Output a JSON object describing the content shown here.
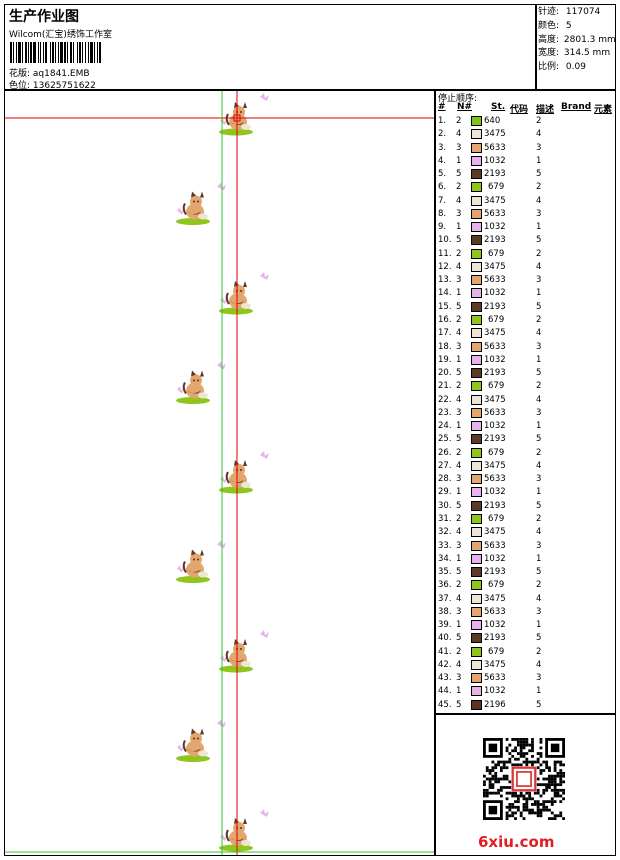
{
  "header": {
    "title": "生产作业图",
    "company": "Wilcom(汇宝)绣饰工作室",
    "pattern": "花版: aq1841.EMB",
    "color_code": "色位: 13625751622"
  },
  "info": {
    "stitches_label": "针迹:",
    "stitches": "117074",
    "colors_label": "颜色:",
    "colors": "5",
    "height_label": "高度:",
    "height": "2801.3 mm",
    "width_label": "宽度:",
    "width": "314.5 mm",
    "scale_label": "比例:",
    "scale": "0.09"
  },
  "sequence": {
    "heading": "停止顺序:",
    "columns": [
      "#",
      "N#",
      "St.",
      "代码",
      "描述",
      "Brand",
      "元素"
    ],
    "swatch_colors": {
      "640": "#7ec21a",
      "679": "#8fc51c",
      "3475": "#ede6d6",
      "5633": "#e2a66e",
      "1032": "#e6b3ea",
      "2193": "#5e3a26",
      "2196": "#5a3421"
    },
    "rows": [
      {
        "num": "1.",
        "n": "2",
        "code": "640",
        "el": "2"
      },
      {
        "num": "2.",
        "n": "4",
        "code": "3475",
        "el": "4"
      },
      {
        "num": "3.",
        "n": "3",
        "code": "5633",
        "el": "3"
      },
      {
        "num": "4.",
        "n": "1",
        "code": "1032",
        "el": "1"
      },
      {
        "num": "5.",
        "n": "5",
        "code": "2193",
        "el": "5"
      },
      {
        "num": "6.",
        "n": "2",
        "code": "679",
        "el": "2"
      },
      {
        "num": "7.",
        "n": "4",
        "code": "3475",
        "el": "4"
      },
      {
        "num": "8.",
        "n": "3",
        "code": "5633",
        "el": "3"
      },
      {
        "num": "9.",
        "n": "1",
        "code": "1032",
        "el": "1"
      },
      {
        "num": "10.",
        "n": "5",
        "code": "2193",
        "el": "5"
      },
      {
        "num": "11.",
        "n": "2",
        "code": "679",
        "el": "2"
      },
      {
        "num": "12.",
        "n": "4",
        "code": "3475",
        "el": "4"
      },
      {
        "num": "13.",
        "n": "3",
        "code": "5633",
        "el": "3"
      },
      {
        "num": "14.",
        "n": "1",
        "code": "1032",
        "el": "1"
      },
      {
        "num": "15.",
        "n": "5",
        "code": "2193",
        "el": "5"
      },
      {
        "num": "16.",
        "n": "2",
        "code": "679",
        "el": "2"
      },
      {
        "num": "17.",
        "n": "4",
        "code": "3475",
        "el": "4"
      },
      {
        "num": "18.",
        "n": "3",
        "code": "5633",
        "el": "3"
      },
      {
        "num": "19.",
        "n": "1",
        "code": "1032",
        "el": "1"
      },
      {
        "num": "20.",
        "n": "5",
        "code": "2193",
        "el": "5"
      },
      {
        "num": "21.",
        "n": "2",
        "code": "679",
        "el": "2"
      },
      {
        "num": "22.",
        "n": "4",
        "code": "3475",
        "el": "4"
      },
      {
        "num": "23.",
        "n": "3",
        "code": "5633",
        "el": "3"
      },
      {
        "num": "24.",
        "n": "1",
        "code": "1032",
        "el": "1"
      },
      {
        "num": "25.",
        "n": "5",
        "code": "2193",
        "el": "5"
      },
      {
        "num": "26.",
        "n": "2",
        "code": "679",
        "el": "2"
      },
      {
        "num": "27.",
        "n": "4",
        "code": "3475",
        "el": "4"
      },
      {
        "num": "28.",
        "n": "3",
        "code": "5633",
        "el": "3"
      },
      {
        "num": "29.",
        "n": "1",
        "code": "1032",
        "el": "1"
      },
      {
        "num": "30.",
        "n": "5",
        "code": "2193",
        "el": "5"
      },
      {
        "num": "31.",
        "n": "2",
        "code": "679",
        "el": "2"
      },
      {
        "num": "32.",
        "n": "4",
        "code": "3475",
        "el": "4"
      },
      {
        "num": "33.",
        "n": "3",
        "code": "5633",
        "el": "3"
      },
      {
        "num": "34.",
        "n": "1",
        "code": "1032",
        "el": "1"
      },
      {
        "num": "35.",
        "n": "5",
        "code": "2193",
        "el": "5"
      },
      {
        "num": "36.",
        "n": "2",
        "code": "679",
        "el": "2"
      },
      {
        "num": "37.",
        "n": "4",
        "code": "3475",
        "el": "4"
      },
      {
        "num": "38.",
        "n": "3",
        "code": "5633",
        "el": "3"
      },
      {
        "num": "39.",
        "n": "1",
        "code": "1032",
        "el": "1"
      },
      {
        "num": "40.",
        "n": "5",
        "code": "2193",
        "el": "5"
      },
      {
        "num": "41.",
        "n": "2",
        "code": "679",
        "el": "2"
      },
      {
        "num": "42.",
        "n": "4",
        "code": "3475",
        "el": "4"
      },
      {
        "num": "43.",
        "n": "3",
        "code": "5633",
        "el": "3"
      },
      {
        "num": "44.",
        "n": "1",
        "code": "1032",
        "el": "1"
      },
      {
        "num": "45.",
        "n": "5",
        "code": "2196",
        "el": "5"
      }
    ]
  },
  "design": {
    "motif_count": 9,
    "guide_colors": {
      "horizontal": "#e00000",
      "vertical_red": "#e00000",
      "vertical_green": "#2ec42e"
    }
  },
  "watermark": "6xiu.com"
}
